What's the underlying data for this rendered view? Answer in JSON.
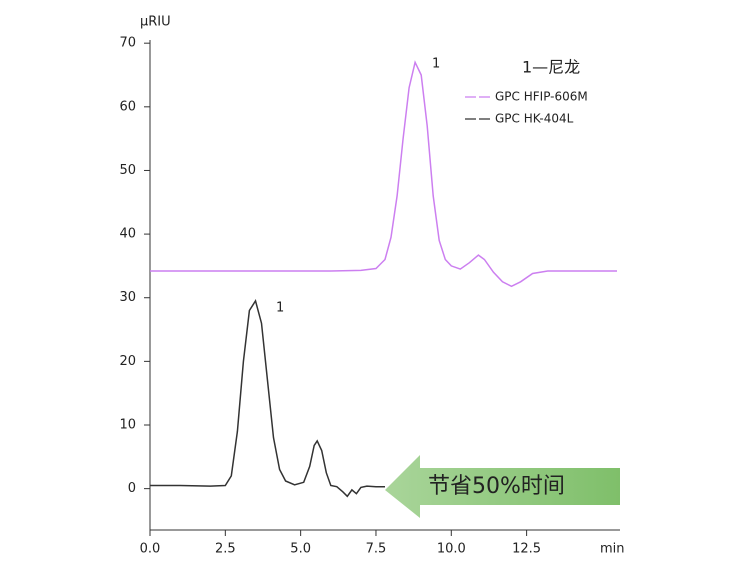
{
  "chart_data": {
    "type": "line",
    "ylabel": "μRIU",
    "xlabel": "min",
    "xlim": [
      0,
      15.5
    ],
    "ylim": [
      -6.5,
      70.5
    ],
    "xticks": [
      {
        "value": 0,
        "label": "0.0"
      },
      {
        "value": 2.5,
        "label": "2.5"
      },
      {
        "value": 5,
        "label": "5.0"
      },
      {
        "value": 7.5,
        "label": "7.5"
      },
      {
        "value": 10,
        "label": "10.0"
      },
      {
        "value": 12.5,
        "label": "12.5"
      }
    ],
    "yticks": [
      0,
      10,
      20,
      30,
      40,
      50,
      60,
      70
    ],
    "grid": false,
    "legend_position": "top-right",
    "annotations": [
      "1",
      "1",
      "1—尼龙",
      "节省50%时间"
    ],
    "series": [
      {
        "name": "GPC HFIP-606M",
        "color": "#cc7ff0",
        "x": [
          0,
          1,
          2,
          3,
          4,
          5,
          6,
          7,
          7.5,
          7.8,
          8.0,
          8.2,
          8.4,
          8.6,
          8.8,
          9.0,
          9.2,
          9.4,
          9.6,
          9.8,
          10.0,
          10.3,
          10.6,
          10.9,
          11.1,
          11.4,
          11.7,
          12.0,
          12.3,
          12.7,
          13.2,
          14,
          15,
          15.5
        ],
        "values": [
          34.2,
          34.2,
          34.2,
          34.2,
          34.2,
          34.2,
          34.2,
          34.3,
          34.6,
          36,
          39.5,
          46,
          55,
          63,
          67,
          65,
          57,
          46,
          39,
          36,
          35,
          34.5,
          35.5,
          36.7,
          36,
          34,
          32.5,
          31.8,
          32.5,
          33.8,
          34.2,
          34.2,
          34.2,
          34.2
        ]
      },
      {
        "name": "GPC HK-404L",
        "color": "#333333",
        "x": [
          0,
          1,
          2,
          2.5,
          2.7,
          2.9,
          3.1,
          3.3,
          3.5,
          3.7,
          3.9,
          4.1,
          4.3,
          4.5,
          4.8,
          5.1,
          5.3,
          5.45,
          5.55,
          5.7,
          5.85,
          6.0,
          6.2,
          6.4,
          6.55,
          6.7,
          6.85,
          7.0,
          7.2,
          7.5,
          7.8
        ],
        "values": [
          0.5,
          0.5,
          0.4,
          0.5,
          2,
          9,
          20,
          28,
          29.5,
          26,
          17,
          8,
          3,
          1.2,
          0.6,
          1,
          3.5,
          6.8,
          7.5,
          6,
          2.5,
          0.5,
          0.3,
          -0.5,
          -1.2,
          -0.2,
          -0.8,
          0.2,
          0.4,
          0.3,
          0.3
        ]
      }
    ]
  }
}
